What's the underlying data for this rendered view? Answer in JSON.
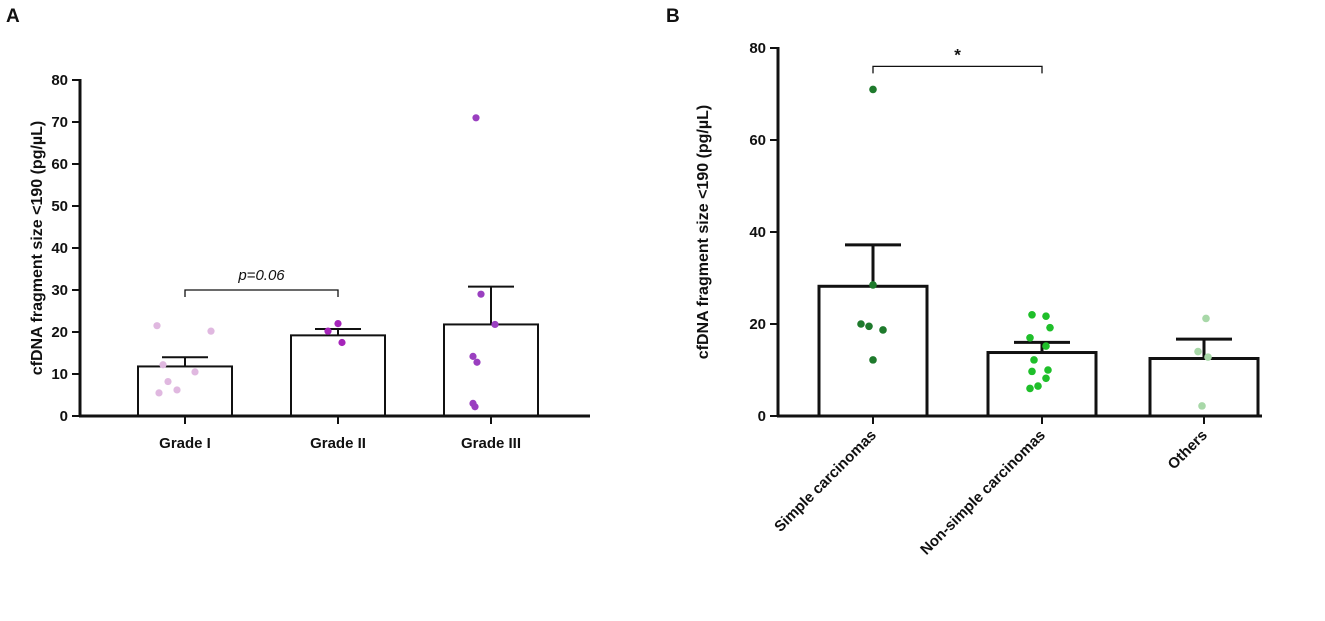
{
  "chart_data": [
    {
      "panel": "A",
      "type": "bar",
      "ylabel": "cfDNA fragment size <190 (pg/µL)",
      "ylim": [
        0,
        80
      ],
      "yticks": [
        0,
        10,
        20,
        30,
        40,
        50,
        60,
        70,
        80
      ],
      "categories": [
        "Grade I",
        "Grade II",
        "Grade III"
      ],
      "values": [
        11.8,
        19.2,
        21.8
      ],
      "errors": [
        2.2,
        1.5,
        9.0
      ],
      "point_colors": [
        "#e0b8e0",
        "#a625ba",
        "#9a3fc0"
      ],
      "points": [
        [
          21.5,
          20.2,
          12.2,
          10.5,
          8.2,
          6.2,
          5.5
        ],
        [
          22.0,
          20.2,
          17.5
        ],
        [
          71.0,
          29.0,
          21.8,
          14.2,
          12.8,
          3.0,
          2.2
        ]
      ],
      "annotation": {
        "text": "p=0.06",
        "from": 0,
        "to": 1,
        "y": 30
      }
    },
    {
      "panel": "B",
      "type": "bar",
      "ylabel": "cfDNA fragment size <190 (pg/µL)",
      "ylim": [
        0,
        80
      ],
      "yticks": [
        0,
        20,
        40,
        60,
        80
      ],
      "categories": [
        "Simple carcinomas",
        "Non-simple carcinomas",
        "Others"
      ],
      "values": [
        28.2,
        13.8,
        12.5
      ],
      "errors": [
        9.0,
        2.2,
        4.2
      ],
      "point_colors": [
        "#1e7a2c",
        "#1fbf2a",
        "#a8d8a8"
      ],
      "points": [
        [
          71.0,
          28.5,
          20.0,
          19.5,
          18.7,
          12.2
        ],
        [
          22.0,
          21.7,
          19.2,
          17.0,
          15.2,
          12.2,
          10.0,
          9.7,
          8.2,
          6.5,
          6.0
        ],
        [
          21.2,
          14.0,
          12.8,
          2.2
        ]
      ],
      "annotation": {
        "text": "*",
        "from": 0,
        "to": 1,
        "y": 76
      }
    }
  ]
}
